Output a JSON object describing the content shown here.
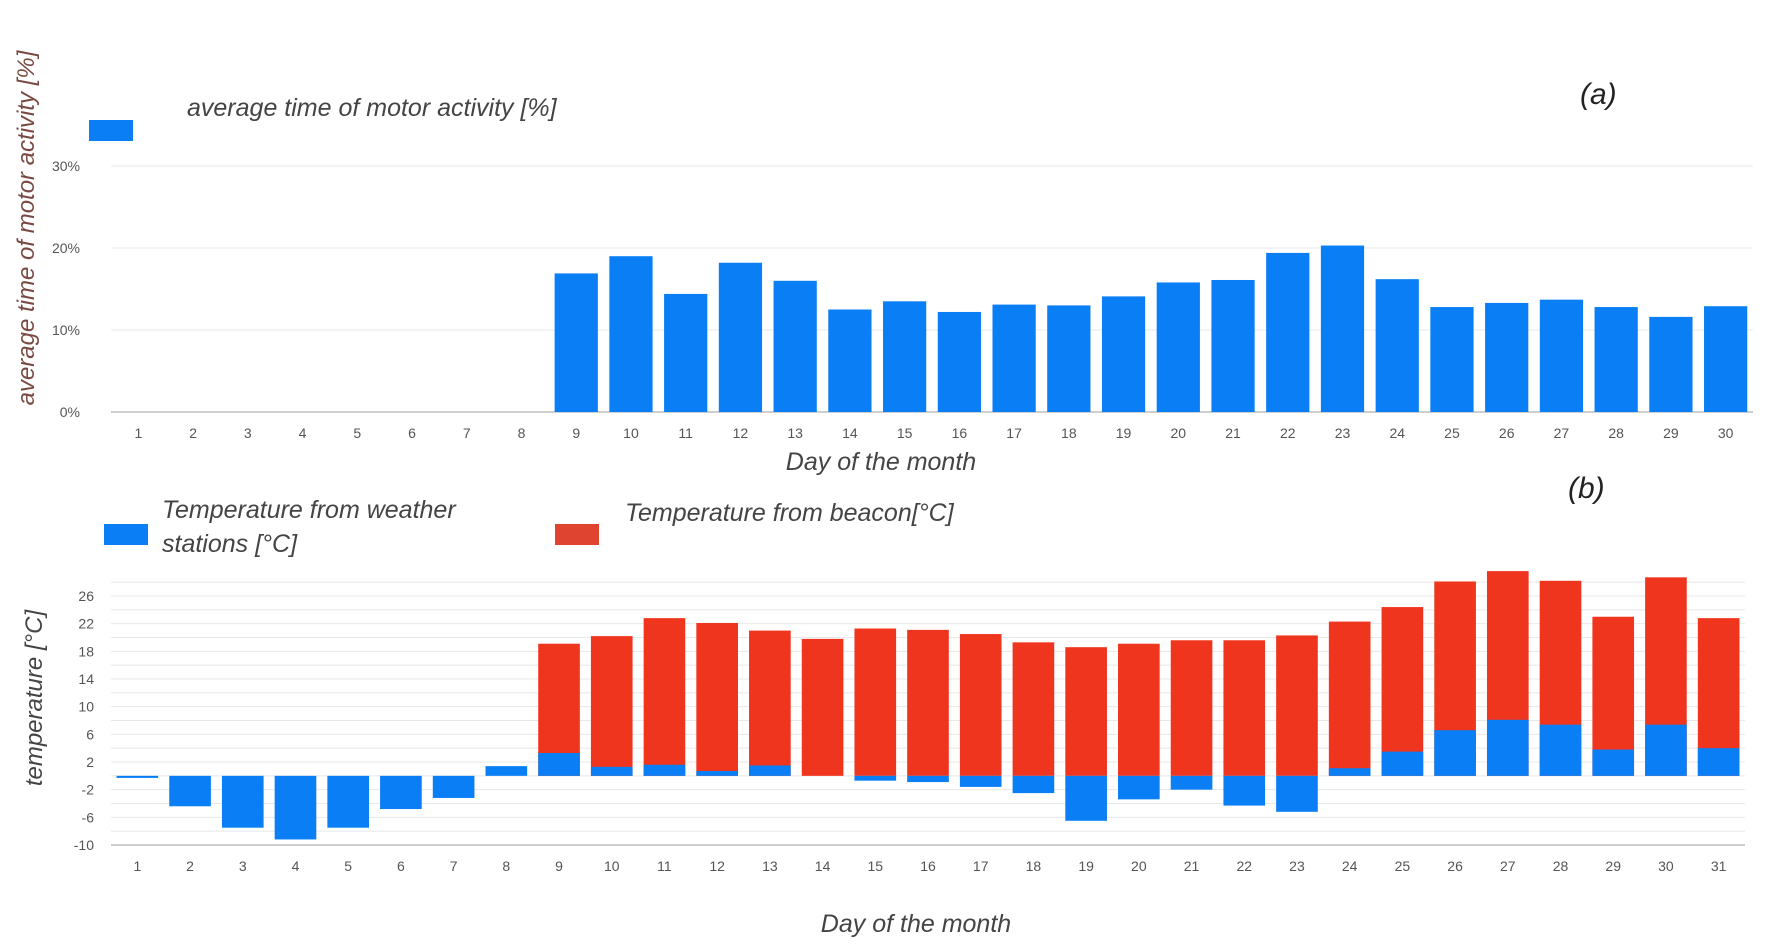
{
  "colors": {
    "blue": "#0a7ff5",
    "red": "#f0351f"
  },
  "chart_data": [
    {
      "type": "bar",
      "panel_label": "(a)",
      "legend": [
        "average time of motor activity  [%]"
      ],
      "ylabel": "average time of motor activity  [%]",
      "xlabel": "Day of the month",
      "ylim": [
        0,
        30
      ],
      "yticks": [
        "0%",
        "10%",
        "20%",
        "30%"
      ],
      "ytick_values": [
        0,
        10,
        20,
        30
      ],
      "categories": [
        "1",
        "2",
        "3",
        "4",
        "5",
        "6",
        "7",
        "8",
        "9",
        "10",
        "11",
        "12",
        "13",
        "14",
        "15",
        "16",
        "17",
        "18",
        "19",
        "20",
        "21",
        "22",
        "23",
        "24",
        "25",
        "26",
        "27",
        "28",
        "29",
        "30"
      ],
      "series": [
        {
          "name": "average time of motor activity  [%]",
          "values": [
            0,
            0,
            0,
            0,
            0,
            0,
            0,
            0,
            16.9,
            19.0,
            14.4,
            18.2,
            16.0,
            12.5,
            13.5,
            12.2,
            13.1,
            13.0,
            14.1,
            15.8,
            16.1,
            19.4,
            20.3,
            16.2,
            12.8,
            13.3,
            13.7,
            12.8,
            11.6,
            12.9
          ]
        }
      ]
    },
    {
      "type": "bar",
      "panel_label": "(b)",
      "legend": [
        "Temperature from weather stations [°C]",
        "Temperature from beacon[°C]"
      ],
      "ylabel": "temperature [°C]",
      "xlabel": "Day of the month",
      "ylim": [
        -10,
        30
      ],
      "yticks": [
        "-10",
        "-6",
        "-2",
        "2",
        "6",
        "10",
        "14",
        "18",
        "22",
        "26"
      ],
      "ytick_values": [
        -10,
        -6,
        -2,
        2,
        6,
        10,
        14,
        18,
        22,
        26
      ],
      "categories": [
        "1",
        "2",
        "3",
        "4",
        "5",
        "6",
        "7",
        "8",
        "9",
        "10",
        "11",
        "12",
        "13",
        "14",
        "15",
        "16",
        "17",
        "18",
        "19",
        "20",
        "21",
        "22",
        "23",
        "24",
        "25",
        "26",
        "27",
        "28",
        "29",
        "30",
        "31"
      ],
      "series": [
        {
          "name": "Temperature from weather stations [°C]",
          "values": [
            -0.3,
            -4.4,
            -7.5,
            -9.2,
            -7.5,
            -4.8,
            -3.2,
            1.4,
            3.3,
            1.3,
            1.6,
            0.7,
            1.5,
            0.0,
            -0.7,
            -0.9,
            -1.6,
            -2.5,
            -6.5,
            -3.4,
            -2.0,
            -4.3,
            -5.2,
            1.1,
            3.5,
            6.6,
            8.1,
            7.4,
            3.8,
            7.4,
            4.0
          ]
        },
        {
          "name": "Temperature from beacon[°C]",
          "values": [
            null,
            null,
            null,
            null,
            null,
            null,
            null,
            null,
            19.1,
            20.2,
            22.8,
            22.1,
            21.0,
            19.8,
            21.3,
            21.1,
            20.5,
            19.3,
            18.6,
            19.1,
            19.6,
            19.6,
            20.3,
            22.3,
            24.4,
            28.1,
            29.6,
            28.2,
            23.0,
            28.7,
            22.8
          ]
        }
      ]
    }
  ]
}
